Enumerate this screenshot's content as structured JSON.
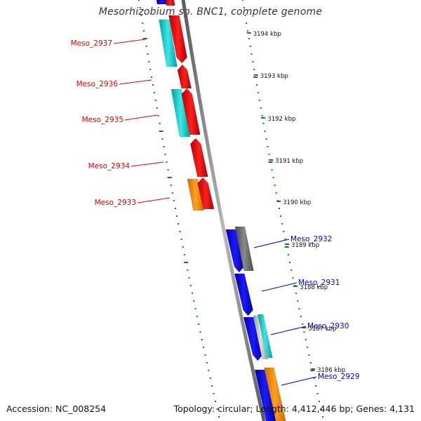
{
  "title": "Mesorhizobium sp. BNC1, complete genome",
  "footer": {
    "accession": "Accession: NC_008254",
    "summary": "Topology: circular; Length: 4,412,446 bp; Genes: 4,131"
  },
  "ticks": [
    {
      "label": "3194 kbp"
    },
    {
      "label": "3193 kbp"
    },
    {
      "label": "3192 kbp"
    },
    {
      "label": "3191 kbp"
    },
    {
      "label": "3190 kbp"
    },
    {
      "label": "3189 kbp"
    },
    {
      "label": "3188 kbp"
    },
    {
      "label": "3187 kbp"
    },
    {
      "label": "3186 kbp"
    }
  ],
  "gene_labels": [
    {
      "name": "Meso_2937",
      "strand": "minus"
    },
    {
      "name": "Meso_2936",
      "strand": "minus"
    },
    {
      "name": "Meso_2935",
      "strand": "minus"
    },
    {
      "name": "Meso_2934",
      "strand": "minus"
    },
    {
      "name": "Meso_2933",
      "strand": "minus"
    },
    {
      "name": "Meso_2932",
      "strand": "plus"
    },
    {
      "name": "Meso_2931",
      "strand": "plus"
    },
    {
      "name": "Meso_2930",
      "strand": "plus"
    },
    {
      "name": "Meso_2929",
      "strand": "plus"
    }
  ],
  "colors": {
    "minus_label": "#e00000",
    "plus_label": "#0000c8",
    "backbone": "#808080",
    "tick": "#1a7a1a",
    "cds_red": "#ff0000",
    "cds_blue": "#0000ee",
    "cog_cyan": "#00cccc",
    "cog_orange": "#ff8c00",
    "cog_gray": "#707070",
    "cog_light": "#c0c0c0"
  }
}
